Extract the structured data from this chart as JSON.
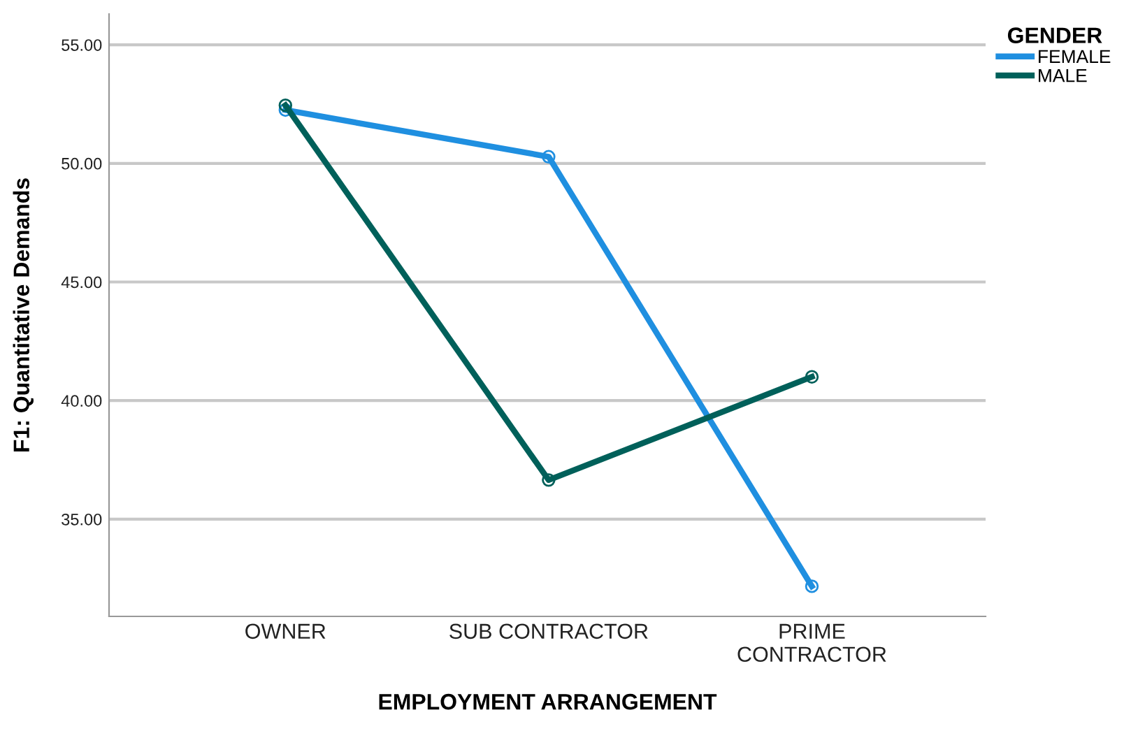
{
  "chart_data": {
    "type": "line",
    "xlabel": "EMPLOYMENT ARRANGEMENT",
    "ylabel": "F1: Quantitative Demands",
    "legend_title": "GENDER",
    "categories": [
      "OWNER",
      "SUB CONTRACTOR",
      "PRIME\nCONTRACTOR"
    ],
    "series": [
      {
        "name": "FEMALE",
        "color": "#1f8fe0",
        "values": [
          52.25,
          50.28,
          32.17
        ]
      },
      {
        "name": "MALE",
        "color": "#00605a",
        "values": [
          52.45,
          36.65,
          41.0
        ]
      }
    ],
    "ylim": [
      30.9,
      56.3
    ],
    "yticks": [
      {
        "value": 35,
        "label": "35.00"
      },
      {
        "value": 40,
        "label": "40.00"
      },
      {
        "value": 45,
        "label": "45.00"
      },
      {
        "value": 50,
        "label": "50.00"
      },
      {
        "value": 55,
        "label": "55.00"
      }
    ],
    "grid": "y",
    "legend": "top right",
    "marker": "circle",
    "line_style": "solid"
  }
}
